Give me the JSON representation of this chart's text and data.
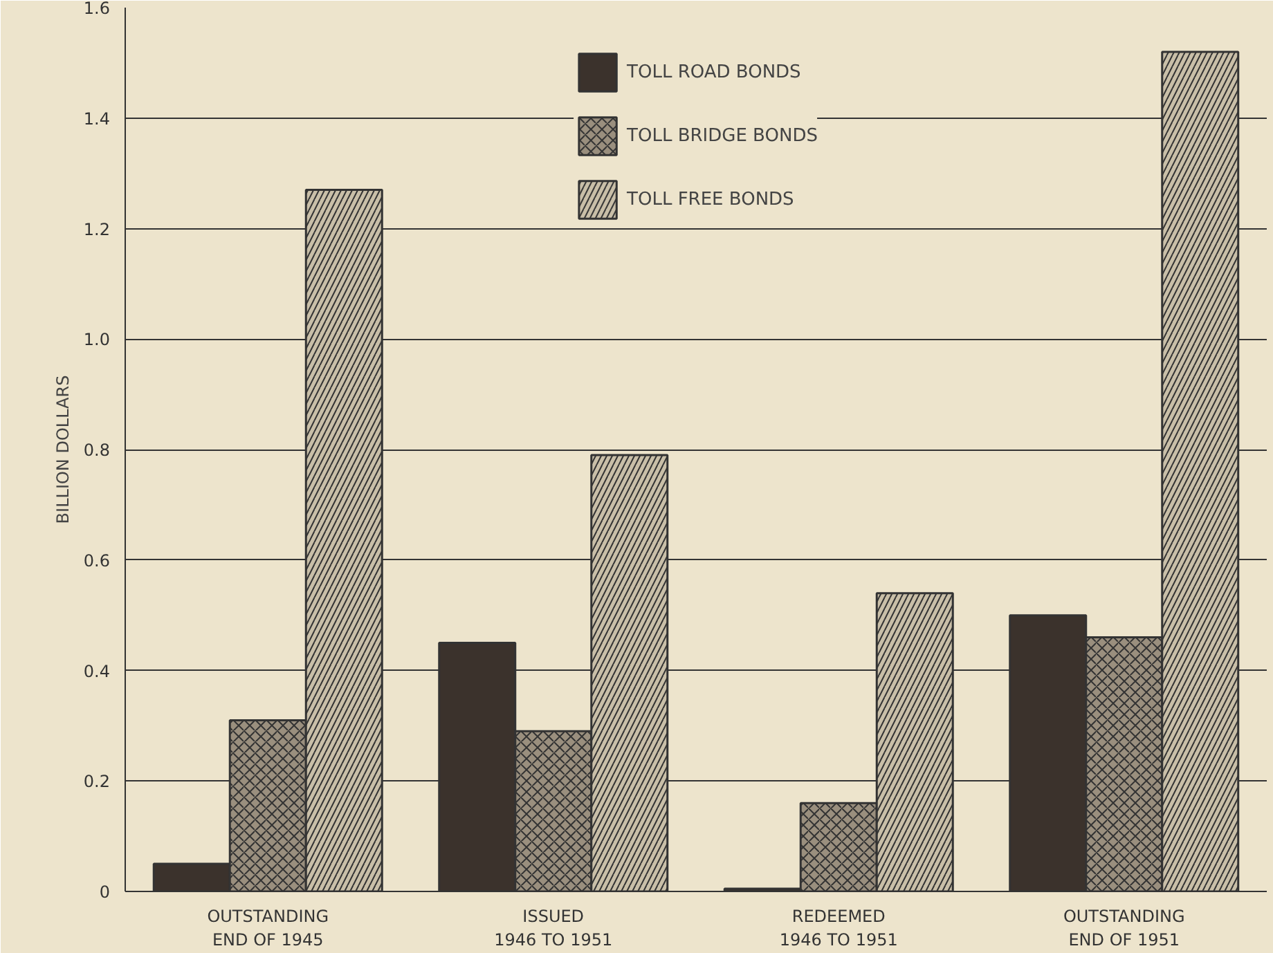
{
  "chart_data": {
    "type": "bar",
    "ylabel": "BILLION DOLLARS",
    "categories": [
      "OUTSTANDING\nEND OF 1945",
      "ISSUED\n1946 TO 1951",
      "REDEEMED\n1946 TO 1951",
      "OUTSTANDING\nEND OF 1951"
    ],
    "series": [
      {
        "name": "TOLL ROAD BONDS",
        "color": "#3b322c",
        "values": [
          0.05,
          0.45,
          0.005,
          0.5
        ]
      },
      {
        "name": "TOLL BRIDGE BONDS",
        "color": "#9a8f7e",
        "values": [
          0.31,
          0.29,
          0.16,
          0.46
        ]
      },
      {
        "name": "TOLL FREE BONDS",
        "color": "#c9bfa8",
        "values": [
          1.27,
          0.79,
          0.54,
          1.52
        ]
      }
    ],
    "ylim": [
      0,
      1.6
    ],
    "yticks": [
      {
        "value": 0,
        "label": "0"
      },
      0.2,
      0.4,
      0.6,
      0.8,
      {
        "value": 1.0,
        "label": "1.0"
      },
      1.2,
      1.4,
      1.6
    ],
    "grid": "y",
    "legend": "top"
  }
}
